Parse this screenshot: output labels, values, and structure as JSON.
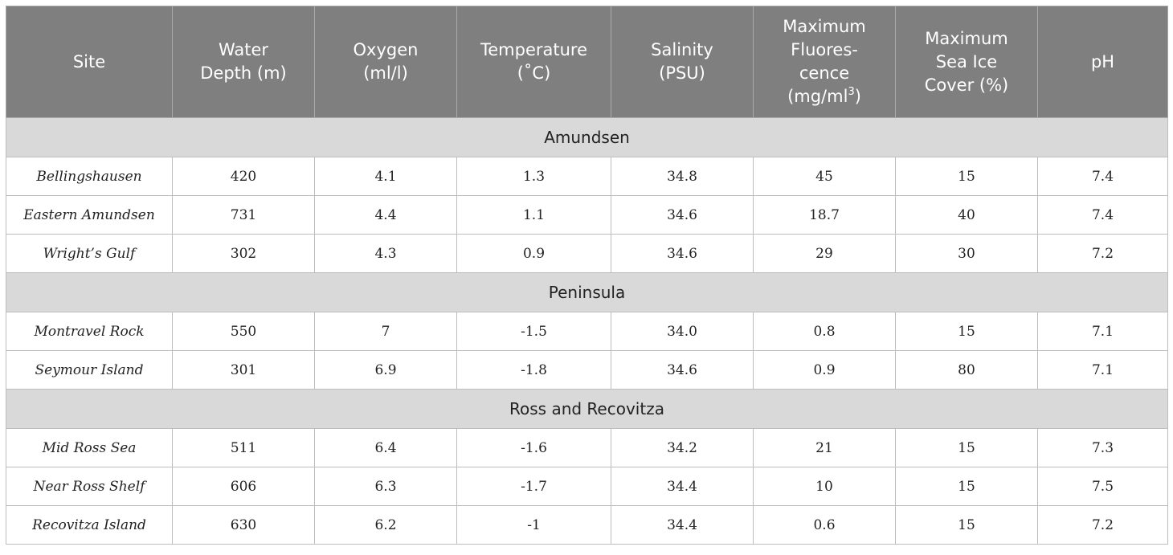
{
  "table": {
    "headers": [
      [
        "Site"
      ],
      [
        "Water",
        "Depth (m)"
      ],
      [
        "Oxygen",
        "(ml/l)"
      ],
      [
        "Temperature",
        "(˚C)"
      ],
      [
        "Salinity",
        "(PSU)"
      ],
      [
        "Maximum",
        "Fluores-",
        "cence",
        "(mg/ml",
        "3",
        ")"
      ],
      [
        "Maximum",
        "Sea Ice",
        "Cover (%)"
      ],
      [
        "pH"
      ]
    ],
    "groups": [
      {
        "name": "Amundsen",
        "rows": [
          [
            "Bellingshausen",
            "420",
            "4.1",
            "1.3",
            "34.8",
            "45",
            "15",
            "7.4"
          ],
          [
            "Eastern Amundsen",
            "731",
            "4.4",
            "1.1",
            "34.6",
            "18.7",
            "40",
            "7.4"
          ],
          [
            "Wright’s Gulf",
            "302",
            "4.3",
            "0.9",
            "34.6",
            "29",
            "30",
            "7.2"
          ]
        ]
      },
      {
        "name": "Peninsula",
        "rows": [
          [
            "Montravel Rock",
            "550",
            "7",
            "-1.5",
            "34.0",
            "0.8",
            "15",
            "7.1"
          ],
          [
            "Seymour Island",
            "301",
            "6.9",
            "-1.8",
            "34.6",
            "0.9",
            "80",
            "7.1"
          ]
        ]
      },
      {
        "name": "Ross and Recovitza",
        "rows": [
          [
            "Mid Ross Sea",
            "511",
            "6.4",
            "-1.6",
            "34.2",
            "21",
            "15",
            "7.3"
          ],
          [
            "Near Ross Shelf",
            "606",
            "6.3",
            "-1.7",
            "34.4",
            "10",
            "15",
            "7.5"
          ],
          [
            "Recovitza Island",
            "630",
            "6.2",
            "-1",
            "34.4",
            "0.6",
            "15",
            "7.2"
          ]
        ]
      }
    ]
  }
}
